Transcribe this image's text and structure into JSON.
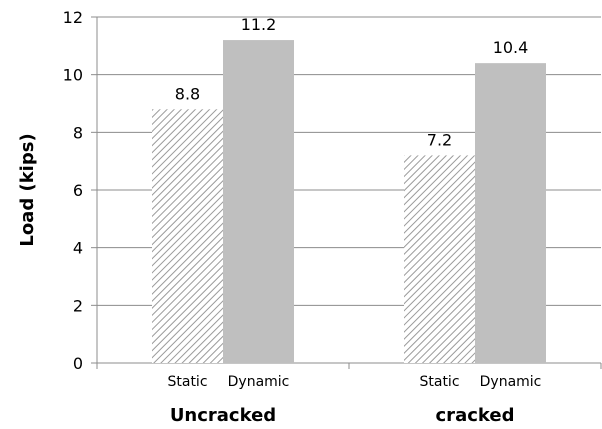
{
  "chart_data": {
    "type": "bar",
    "title": "",
    "xlabel": "",
    "ylabel": "Load (kips)",
    "ylim": [
      0,
      12
    ],
    "yticks": [
      0,
      2,
      4,
      6,
      8,
      10,
      12
    ],
    "grid": true,
    "legend": "none",
    "groups": [
      "Uncracked",
      "cracked"
    ],
    "series": [
      {
        "name": "Static",
        "values": [
          8.8,
          7.2
        ],
        "value_labels": [
          "8.8",
          "7.2"
        ],
        "style": "hatched",
        "color": "#9a9a9a"
      },
      {
        "name": "Dynamic",
        "values": [
          11.2,
          10.4
        ],
        "value_labels": [
          "11.2",
          "10.4"
        ],
        "style": "solid",
        "color": "#bfbfbf"
      }
    ]
  }
}
